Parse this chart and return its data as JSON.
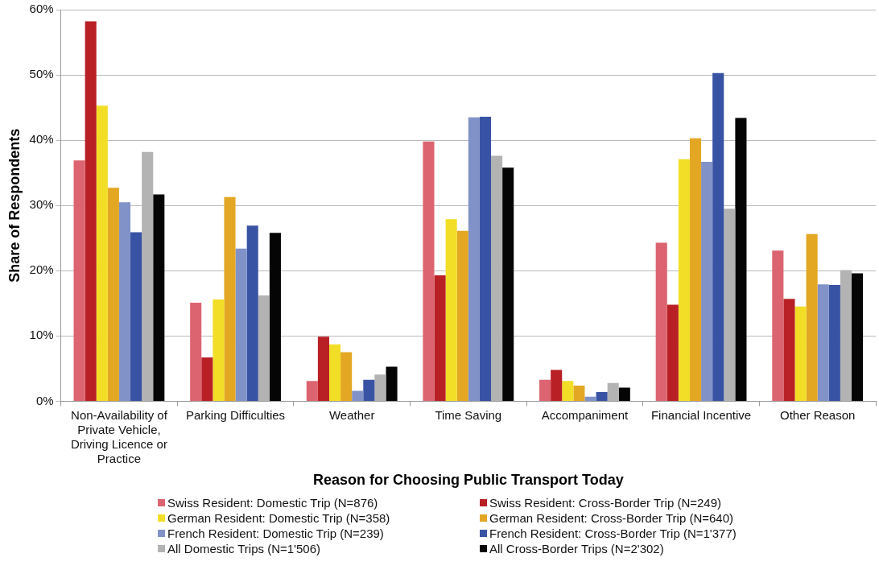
{
  "chart_data": {
    "type": "bar",
    "xlabel": "Reason for Choosing Public Transport Today",
    "ylabel": "Share of Respondents",
    "categories": [
      "Non-Availability of Private Vehicle, Driving Licence or Practice",
      "Parking Difficulties",
      "Weather",
      "Time Saving",
      "Accompaniment",
      "Financial Incentive",
      "Other Reason"
    ],
    "series": [
      {
        "name": "Swiss Resident: Domestic Trip (N=876)",
        "color": "#dc6470",
        "values": [
          36.9,
          15.1,
          3.1,
          39.8,
          3.3,
          24.3,
          23.1
        ]
      },
      {
        "name": "Swiss Resident: Cross-Border Trip (N=249)",
        "color": "#b92025",
        "values": [
          58.2,
          6.7,
          9.9,
          19.3,
          4.8,
          14.8,
          15.7
        ]
      },
      {
        "name": "German Resident: Domestic Trip (N=358)",
        "color": "#f2de26",
        "values": [
          45.3,
          15.6,
          8.7,
          27.9,
          3.1,
          37.1,
          14.5
        ]
      },
      {
        "name": "German Resident: Cross-Border Trip (N=640)",
        "color": "#e3a723",
        "values": [
          32.7,
          31.3,
          7.5,
          26.1,
          2.4,
          40.3,
          25.6
        ]
      },
      {
        "name": "French Resident: Domestic Trip (N=239)",
        "color": "#8092c8",
        "values": [
          30.5,
          23.4,
          1.6,
          43.5,
          0.7,
          36.7,
          17.9
        ]
      },
      {
        "name": "French Resident: Cross-Border Trip (N=1'377)",
        "color": "#3953a4",
        "values": [
          25.9,
          26.9,
          3.3,
          43.6,
          1.4,
          50.3,
          17.8
        ]
      },
      {
        "name": "All Domestic Trips (N=1'506)",
        "color": "#b3b3b3",
        "values": [
          38.2,
          16.2,
          4.1,
          37.6,
          2.8,
          29.5,
          20.1
        ]
      },
      {
        "name": "All Cross-Border Trips (N=2'302)",
        "color": "#050505",
        "values": [
          31.7,
          25.8,
          5.3,
          35.8,
          2.1,
          43.4,
          19.6
        ]
      }
    ],
    "ylim": [
      0,
      60
    ],
    "yticks": [
      {
        "value": 0,
        "label": "0%"
      },
      {
        "value": 10,
        "label": "10%"
      },
      {
        "value": 20,
        "label": "20%"
      },
      {
        "value": 30,
        "label": "30%"
      },
      {
        "value": 40,
        "label": "40%"
      },
      {
        "value": 50,
        "label": "50%"
      },
      {
        "value": 60,
        "label": "60%"
      }
    ],
    "grid": "y",
    "legend": "bottom"
  }
}
